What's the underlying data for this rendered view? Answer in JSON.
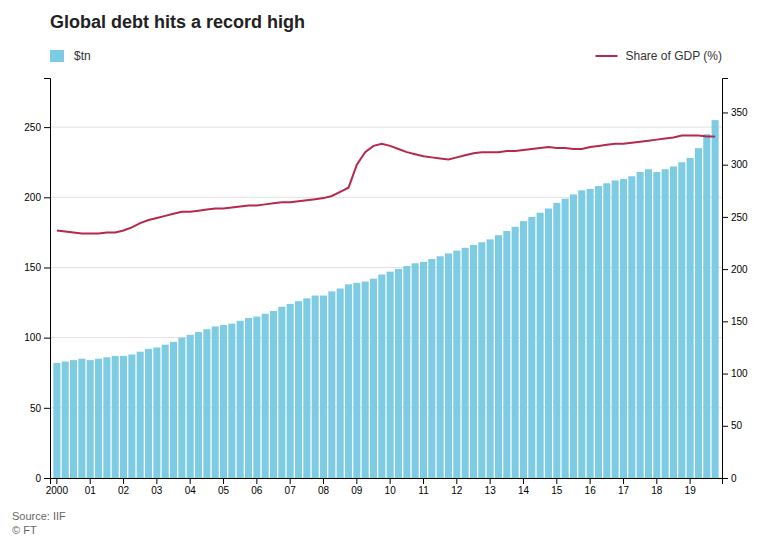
{
  "chart_data": {
    "type": "bar",
    "title": "Global debt hits a record high",
    "annotations": [
      "Source: IIF\n© FT"
    ],
    "categories": [
      "2000",
      null,
      null,
      null,
      "01",
      null,
      null,
      null,
      "02",
      null,
      null,
      null,
      "03",
      null,
      null,
      null,
      "04",
      null,
      null,
      null,
      "05",
      null,
      null,
      null,
      "06",
      null,
      null,
      null,
      "07",
      null,
      null,
      null,
      "08",
      null,
      null,
      null,
      "09",
      null,
      null,
      null,
      "10",
      null,
      null,
      null,
      "11",
      null,
      null,
      null,
      "12",
      null,
      null,
      null,
      "13",
      null,
      null,
      null,
      "14",
      null,
      null,
      null,
      "15",
      null,
      null,
      null,
      "16",
      null,
      null,
      null,
      "17",
      null,
      null,
      null,
      "18",
      null,
      null,
      null,
      "19",
      null,
      null,
      null
    ],
    "series": [
      {
        "name": "$tn",
        "type": "bar",
        "color": "#7ecce4",
        "values": [
          82,
          83,
          84,
          85,
          84,
          85,
          86,
          87,
          87,
          88,
          90,
          92,
          93,
          95,
          97,
          100,
          102,
          104,
          106,
          108,
          109,
          110,
          112,
          114,
          115,
          117,
          119,
          122,
          124,
          126,
          128,
          130,
          130,
          133,
          135,
          138,
          139,
          140,
          142,
          145,
          147,
          149,
          151,
          153,
          154,
          156,
          158,
          160,
          162,
          164,
          166,
          168,
          170,
          173,
          176,
          179,
          183,
          186,
          189,
          192,
          196,
          199,
          202,
          205,
          206,
          208,
          210,
          212,
          213,
          215,
          218,
          220,
          218,
          220,
          222,
          225,
          228,
          235,
          245,
          255
        ]
      },
      {
        "name": "Share of GDP (%)",
        "type": "line",
        "axis": "y2",
        "color": "#b5294e",
        "values": [
          237,
          236,
          235,
          234,
          234,
          234,
          235,
          235,
          237,
          240,
          244,
          247,
          249,
          251,
          253,
          255,
          255,
          256,
          257,
          258,
          258,
          259,
          260,
          261,
          261,
          262,
          263,
          264,
          264,
          265,
          266,
          267,
          268,
          270,
          274,
          278,
          300,
          312,
          318,
          320,
          318,
          315,
          312,
          310,
          308,
          307,
          306,
          305,
          307,
          309,
          311,
          312,
          312,
          312,
          313,
          313,
          314,
          315,
          316,
          317,
          316,
          316,
          315,
          315,
          317,
          318,
          319,
          320,
          320,
          321,
          322,
          323,
          324,
          325,
          326,
          328,
          328,
          328,
          327,
          327
        ]
      }
    ],
    "ylim": [
      0,
      285
    ],
    "yticks": [
      0,
      50,
      100,
      150,
      200,
      250
    ],
    "y2lim": [
      0,
      383
    ],
    "y2ticks": [
      0,
      50,
      100,
      150,
      200,
      250,
      300,
      350
    ],
    "grid": true,
    "legend": "top"
  }
}
